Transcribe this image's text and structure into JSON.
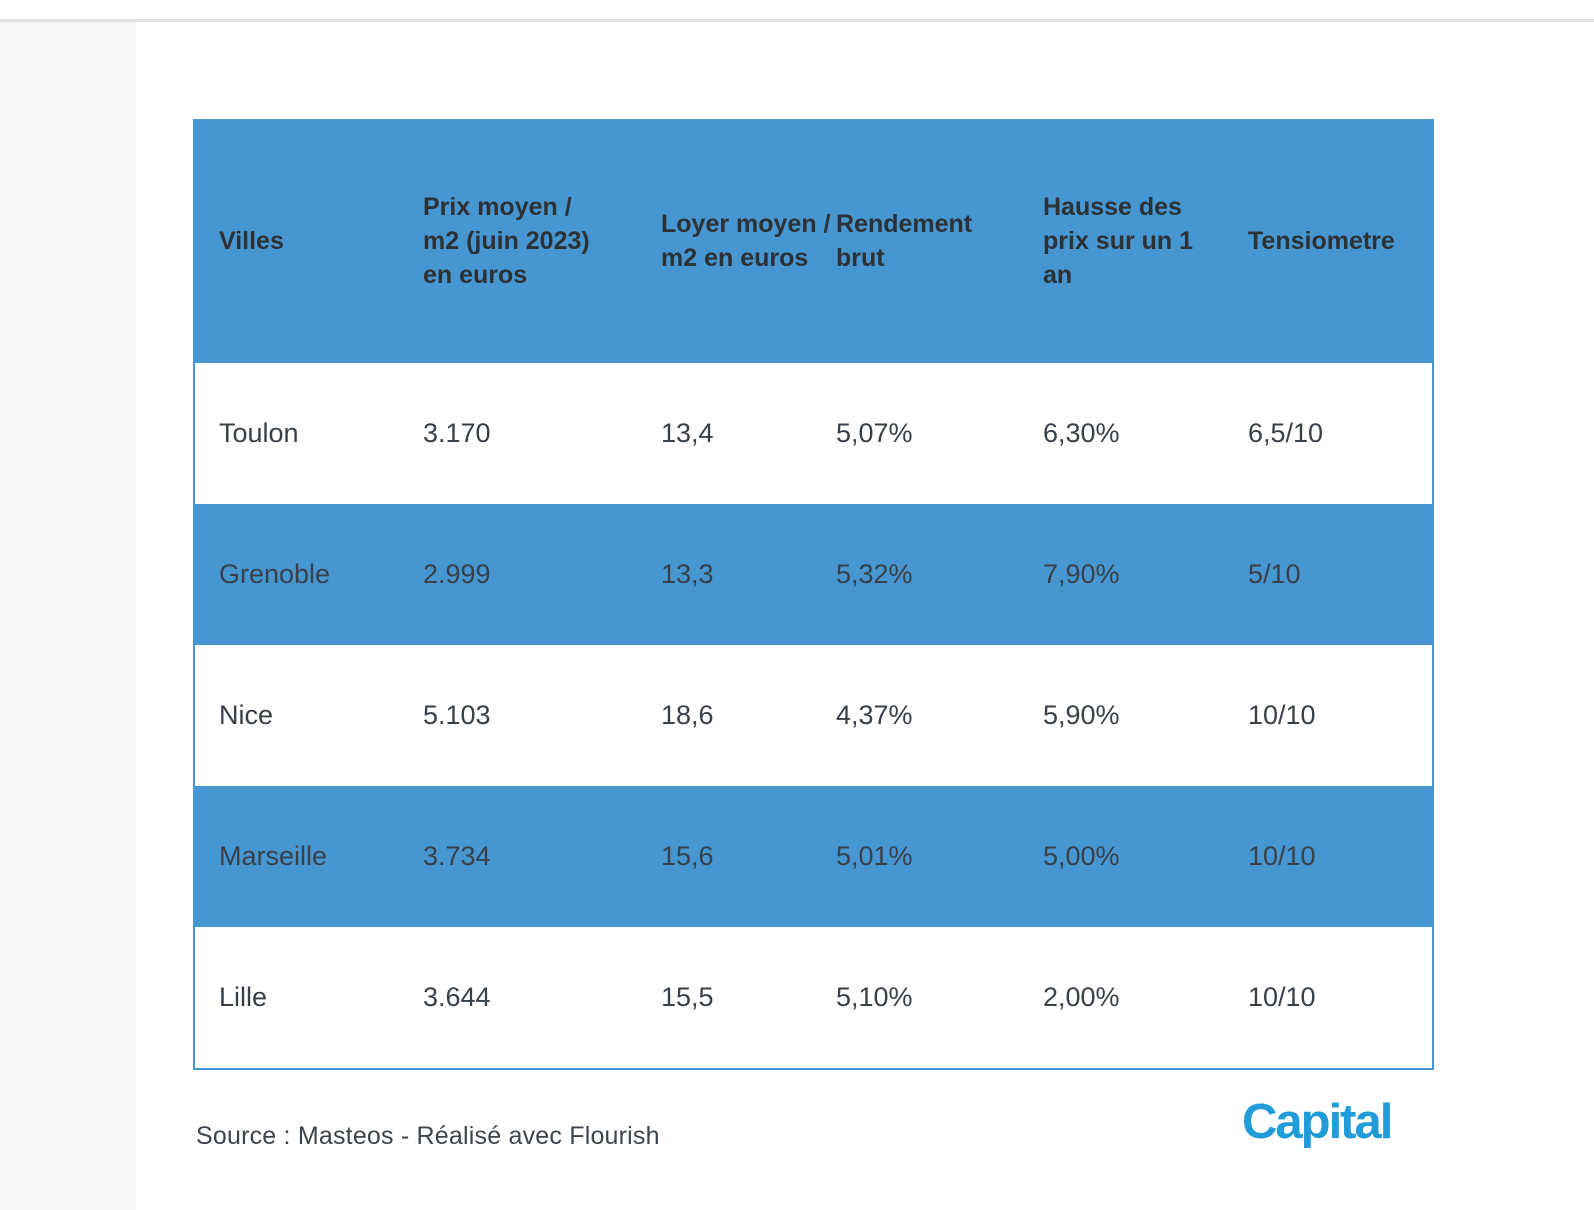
{
  "chart_data": {
    "type": "table",
    "columns": [
      "Villes",
      "Prix moyen / m2 (juin 2023) en euros",
      "Loyer moyen / m2 en euros",
      "Rendement brut",
      "Hausse des prix sur un 1 an",
      "Tensiometre"
    ],
    "rows": [
      [
        "Toulon",
        "3.170",
        "13,4",
        "5,07%",
        "6,30%",
        "6,5/10"
      ],
      [
        "Grenoble",
        "2.999",
        "13,3",
        "5,32%",
        "7,90%",
        "5/10"
      ],
      [
        "Nice",
        "5.103",
        "18,6",
        "4,37%",
        "5,90%",
        "10/10"
      ],
      [
        "Marseille",
        "3.734",
        "15,6",
        "5,01%",
        "5,00%",
        "10/10"
      ],
      [
        "Lille",
        "3.644",
        "15,5",
        "5,10%",
        "2,00%",
        "10/10"
      ]
    ],
    "header_background": "#4696d2",
    "row_stripe_colors": [
      "#ffffff",
      "#4696d2"
    ],
    "legend_position": "none",
    "grid": false
  },
  "header_lines": [
    [
      "Villes"
    ],
    [
      "Prix moyen /",
      "m2 (juin 2023)",
      "en euros"
    ],
    [
      "Loyer moyen /",
      "m2 en euros"
    ],
    [
      "Rendement",
      "brut"
    ],
    [
      "Hausse des",
      "prix sur un 1",
      "an"
    ],
    [
      "Tensiometre"
    ]
  ],
  "footer": {
    "source_text": "Source : Masteos - Réalisé avec Flourish",
    "brand_label": "Capital",
    "brand_color": "#1f9cd9"
  },
  "colors": {
    "accent_blue": "#4696d2",
    "sidebar_gray": "#f7f7f7",
    "divider_gray": "#e0e0e0",
    "header_text": "#2e3134",
    "body_text": "#3a4047"
  }
}
